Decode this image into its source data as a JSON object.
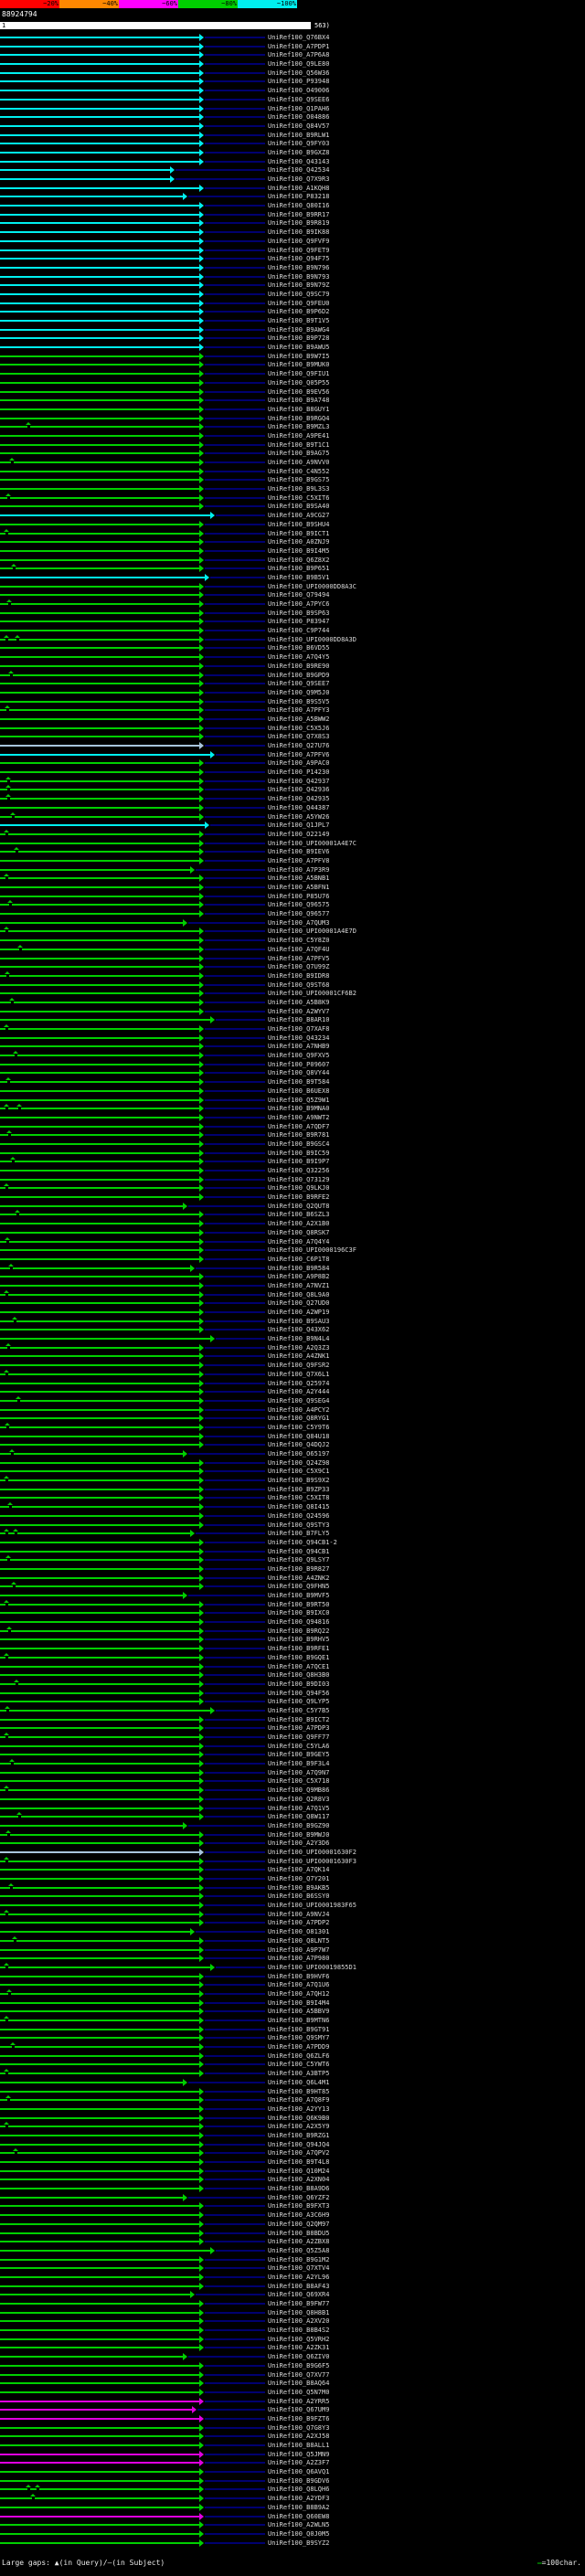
{
  "scale_bar": {
    "segments": [
      {
        "label": "~20%",
        "color": "#ff0000"
      },
      {
        "label": "~40%",
        "color": "#ff8800"
      },
      {
        "label": "~60%",
        "color": "#ff00ff"
      },
      {
        "label": "~80%",
        "color": "#00d000"
      },
      {
        "label": "~100%",
        "color": "#00efef"
      }
    ]
  },
  "query": {
    "id": "88924794",
    "start": "1",
    "end": "563)"
  },
  "footer": {
    "legend": "Large gaps: ▲(in Query)/—(in Subject)",
    "scale_dash": "—",
    "scale_text": "=100char."
  },
  "id_prefix": "UniRef100_",
  "colors": {
    "c": "#00efef",
    "g": "#00d000",
    "m": "#e000e0",
    "b": "#a8c4dc"
  },
  "rows": [
    [
      "Q76BX4",
      "c",
      218
    ],
    [
      "A7PDP1",
      "c",
      218
    ],
    [
      "A7P6A8",
      "c",
      218
    ],
    [
      "Q9LE80",
      "c",
      218
    ],
    [
      "Q56W36",
      "c",
      218
    ],
    [
      "P93948",
      "c",
      218
    ],
    [
      "O49006",
      "c",
      218
    ],
    [
      "Q9SEE6",
      "c",
      218
    ],
    [
      "Q1PAH6",
      "c",
      218
    ],
    [
      "O04886",
      "c",
      218
    ],
    [
      "Q84V57",
      "c",
      218
    ],
    [
      "B9RLW1",
      "c",
      218
    ],
    [
      "Q9FY03",
      "c",
      218
    ],
    [
      "B9GXZ8",
      "c",
      218
    ],
    [
      "Q43143",
      "c",
      218
    ],
    [
      "Q42534",
      "c",
      186
    ],
    [
      "Q7X9R3",
      "c",
      186
    ],
    [
      "A1KQH8",
      "c",
      218
    ],
    [
      "P83218",
      "c",
      200
    ],
    [
      "Q80I16",
      "c",
      218
    ],
    [
      "B9RR17",
      "c",
      218
    ],
    [
      "B9R819",
      "c",
      218
    ],
    [
      "B9IK88",
      "c",
      218
    ],
    [
      "Q9FVF9",
      "c",
      218
    ],
    [
      "Q9FET9",
      "c",
      218
    ],
    [
      "Q94F75",
      "c",
      218
    ],
    [
      "B9N796",
      "c",
      218
    ],
    [
      "B9N793",
      "c",
      218
    ],
    [
      "B9N79Z",
      "c",
      218
    ],
    [
      "Q9SC79",
      "c",
      218
    ],
    [
      "Q9FEU0",
      "c",
      218
    ],
    [
      "B9P6D2",
      "c",
      218
    ],
    [
      "B9T1V5",
      "c",
      218
    ],
    [
      "B9AWG4",
      "c",
      218
    ],
    [
      "B9P728",
      "c",
      218
    ],
    [
      "B9AWU5",
      "c",
      218
    ],
    [
      "B9W7I5",
      "g",
      218
    ],
    [
      "B9MUK0",
      "g",
      218
    ],
    [
      "Q9FIU1",
      "g",
      218
    ],
    [
      "Q05P55",
      "g",
      218
    ],
    [
      "B9EV56",
      "g",
      218
    ],
    [
      "B9A748",
      "g",
      218
    ],
    [
      "B8GUY1",
      "g",
      218
    ],
    [
      "B9RGQ4",
      "g",
      218
    ],
    [
      "B9MZL3",
      "g",
      218,
      [
        30
      ]
    ],
    [
      "A9PE41",
      "g",
      218
    ],
    [
      "B9T1C1",
      "g",
      218
    ],
    [
      "B9AG75",
      "g",
      218
    ],
    [
      "A9NVV0",
      "g",
      218,
      [
        12
      ]
    ],
    [
      "C4N552",
      "g",
      218
    ],
    [
      "B9GS75",
      "g",
      218
    ],
    [
      "B9L3S3",
      "g",
      218
    ],
    [
      "C5XIT6",
      "g",
      218,
      [
        8
      ]
    ],
    [
      "B9SA40",
      "g",
      218
    ],
    [
      "A9CG27",
      "c",
      230
    ],
    [
      "B9SHU4",
      "g",
      218
    ],
    [
      "B9ICT1",
      "g",
      218,
      [
        6
      ]
    ],
    [
      "A0ZNJ9",
      "g",
      218
    ],
    [
      "B9I4M5",
      "g",
      218
    ],
    [
      "Q6Z8X2",
      "g",
      218
    ],
    [
      "B9P651",
      "g",
      218,
      [
        14
      ]
    ],
    [
      "B9B5V1",
      "c",
      224
    ],
    [
      "UPI0000DD8A3C",
      "g",
      218
    ],
    [
      "Q79494",
      "g",
      218
    ],
    [
      "A7PYC6",
      "g",
      218,
      [
        9
      ]
    ],
    [
      "B9SP63",
      "g",
      218
    ],
    [
      "P83947",
      "g",
      218
    ],
    [
      "C9P744",
      "g",
      218
    ],
    [
      "UPI0000DD8A3D",
      "g",
      218,
      [
        6,
        18
      ]
    ],
    [
      "B6VD55",
      "g",
      218
    ],
    [
      "A7Q4Y5",
      "g",
      218
    ],
    [
      "B9RE90",
      "g",
      218
    ],
    [
      "B9GPD9",
      "g",
      218,
      [
        11
      ]
    ],
    [
      "Q9SEE7",
      "g",
      218
    ],
    [
      "Q9M5J0",
      "g",
      218
    ],
    [
      "B9S5V5",
      "g",
      218
    ],
    [
      "A7PFY3",
      "g",
      218,
      [
        7
      ]
    ],
    [
      "A5BWW2",
      "g",
      218
    ],
    [
      "C5X5J6",
      "g",
      218
    ],
    [
      "Q7X8S3",
      "g",
      218
    ],
    [
      "Q27U76",
      "b",
      218
    ],
    [
      "A7PFV6",
      "c",
      230
    ],
    [
      "A9PAC0",
      "g",
      218
    ],
    [
      "P14230",
      "g",
      218
    ],
    [
      "Q42937",
      "g",
      218,
      [
        8
      ]
    ],
    [
      "Q42936",
      "g",
      218,
      [
        8
      ]
    ],
    [
      "Q42935",
      "g",
      218,
      [
        8
      ]
    ],
    [
      "Q44387",
      "g",
      218
    ],
    [
      "A5YW26",
      "g",
      218,
      [
        13
      ]
    ],
    [
      "Q1JPL7",
      "c",
      224
    ],
    [
      "O22149",
      "g",
      218,
      [
        6
      ]
    ],
    [
      "UPI00001A4E7C",
      "g",
      218
    ],
    [
      "B9IEV6",
      "g",
      218,
      [
        17
      ]
    ],
    [
      "A7PFV8",
      "g",
      218
    ],
    [
      "A7P3R9",
      "g",
      208
    ],
    [
      "A5BNB1",
      "g",
      218,
      [
        6
      ]
    ],
    [
      "A5BFN1",
      "g",
      218
    ],
    [
      "P85U76",
      "g",
      218
    ],
    [
      "Q96575",
      "g",
      218,
      [
        10
      ]
    ],
    [
      "Q96577",
      "g",
      218
    ],
    [
      "A7QUM3",
      "g",
      200
    ],
    [
      "UPI00001A4E7D",
      "g",
      218,
      [
        6
      ]
    ],
    [
      "C5Y8Z0",
      "g",
      218
    ],
    [
      "A7QF4U",
      "g",
      218,
      [
        21
      ]
    ],
    [
      "A7PFV5",
      "g",
      218
    ],
    [
      "Q7U99Z",
      "g",
      218
    ],
    [
      "B9IDR8",
      "g",
      218,
      [
        7
      ]
    ],
    [
      "Q9ST68",
      "g",
      218
    ],
    [
      "UPI00001CF6B2",
      "g",
      218
    ],
    [
      "A5B8K9",
      "g",
      218,
      [
        12
      ]
    ],
    [
      "A2WYV7",
      "g",
      218
    ],
    [
      "B8AR10",
      "g",
      230
    ],
    [
      "Q7XAF8",
      "g",
      218,
      [
        6
      ]
    ],
    [
      "Q43234",
      "g",
      218
    ],
    [
      "A7NHB9",
      "g",
      218
    ],
    [
      "Q9FXV5",
      "g",
      218,
      [
        16
      ]
    ],
    [
      "P09607",
      "g",
      218
    ],
    [
      "Q8VY44",
      "g",
      218
    ],
    [
      "B9T584",
      "g",
      218,
      [
        8
      ]
    ],
    [
      "B6UEX8",
      "g",
      218
    ],
    [
      "Q5Z9W1",
      "g",
      218
    ],
    [
      "B9MNA0",
      "g",
      218,
      [
        6,
        20
      ]
    ],
    [
      "A9NWT2",
      "g",
      218
    ],
    [
      "A7QDF7",
      "g",
      218
    ],
    [
      "B9R781",
      "g",
      218,
      [
        9
      ]
    ],
    [
      "B9GSC4",
      "g",
      218
    ],
    [
      "B9IC59",
      "g",
      218
    ],
    [
      "B9I9P7",
      "g",
      218,
      [
        13
      ]
    ],
    [
      "Q32256",
      "g",
      218
    ],
    [
      "Q73129",
      "g",
      218
    ],
    [
      "Q9LKJ0",
      "g",
      218,
      [
        6
      ]
    ],
    [
      "B9RFE2",
      "g",
      218
    ],
    [
      "Q2QUT8",
      "g",
      200
    ],
    [
      "B6SZL3",
      "g",
      218,
      [
        18
      ]
    ],
    [
      "A2X1B0",
      "g",
      218
    ],
    [
      "Q8RSK7",
      "g",
      218
    ],
    [
      "A7Q4Y4",
      "g",
      218,
      [
        7
      ]
    ],
    [
      "UPI0000196C3F",
      "g",
      218
    ],
    [
      "C6P1T8",
      "g",
      218
    ],
    [
      "B9R584",
      "g",
      208,
      [
        11
      ]
    ],
    [
      "A9P8B2",
      "g",
      218
    ],
    [
      "A7NVZ1",
      "g",
      218
    ],
    [
      "Q8L9A0",
      "g",
      218,
      [
        6
      ]
    ],
    [
      "Q27UD0",
      "g",
      218
    ],
    [
      "A2WP19",
      "g",
      218
    ],
    [
      "B9SAU3",
      "g",
      218,
      [
        15
      ]
    ],
    [
      "Q43X62",
      "g",
      218
    ],
    [
      "B9N4L4",
      "g",
      230
    ],
    [
      "A2Q3Z3",
      "g",
      218,
      [
        8
      ]
    ],
    [
      "A4ZNK1",
      "g",
      218
    ],
    [
      "Q9FSR2",
      "g",
      218
    ],
    [
      "Q7X6L1",
      "g",
      218,
      [
        6
      ]
    ],
    [
      "Q25974",
      "g",
      218
    ],
    [
      "A2Y444",
      "g",
      218
    ],
    [
      "Q9SEG4",
      "g",
      218,
      [
        19
      ]
    ],
    [
      "A4PCY2",
      "g",
      218
    ],
    [
      "Q8RYG1",
      "g",
      218
    ],
    [
      "C5Y9T6",
      "g",
      218,
      [
        7
      ]
    ],
    [
      "Q84U18",
      "g",
      218
    ],
    [
      "Q4DQJ2",
      "g",
      218
    ],
    [
      "O65197",
      "g",
      200,
      [
        12
      ]
    ],
    [
      "Q24Z98",
      "g",
      218
    ],
    [
      "C5X9C1",
      "g",
      218
    ],
    [
      "B9S9X2",
      "g",
      218,
      [
        6
      ]
    ],
    [
      "B9ZP33",
      "g",
      218
    ],
    [
      "C5XIT8",
      "g",
      218
    ],
    [
      "Q8I415",
      "g",
      218,
      [
        10
      ]
    ],
    [
      "Q24596",
      "g",
      218
    ],
    [
      "Q9STY3",
      "g",
      218
    ],
    [
      "B7FLY5",
      "g",
      208,
      [
        6,
        16
      ]
    ],
    [
      "Q94CB1-2",
      "g",
      218
    ],
    [
      "Q94CB1",
      "g",
      218
    ],
    [
      "Q9LSY7",
      "g",
      218,
      [
        8
      ]
    ],
    [
      "B9R827",
      "g",
      218
    ],
    [
      "A4ZNK2",
      "g",
      218
    ],
    [
      "Q9FHN5",
      "g",
      218,
      [
        14
      ]
    ],
    [
      "B9MVF5",
      "g",
      200
    ],
    [
      "B9RT50",
      "g",
      218,
      [
        6
      ]
    ],
    [
      "B9IXC0",
      "g",
      218
    ],
    [
      "Q94816",
      "g",
      218
    ],
    [
      "B9RQ22",
      "g",
      218,
      [
        9
      ]
    ],
    [
      "B9RHV5",
      "g",
      218
    ],
    [
      "B9RFE1",
      "g",
      218
    ],
    [
      "B9GQE1",
      "g",
      218,
      [
        6
      ]
    ],
    [
      "A7QCE1",
      "g",
      218
    ],
    [
      "Q8H3B0",
      "g",
      218
    ],
    [
      "B9DI03",
      "g",
      218,
      [
        17
      ]
    ],
    [
      "Q94F56",
      "g",
      218
    ],
    [
      "Q9LYP5",
      "g",
      218
    ],
    [
      "C5Y7B5",
      "g",
      230,
      [
        7
      ]
    ],
    [
      "B9ICT2",
      "g",
      218
    ],
    [
      "A7PDP3",
      "g",
      218
    ],
    [
      "Q9FF77",
      "g",
      218,
      [
        6
      ]
    ],
    [
      "C5YLA6",
      "g",
      218
    ],
    [
      "B9GEY5",
      "g",
      218
    ],
    [
      "B9F3L4",
      "g",
      218,
      [
        12
      ]
    ],
    [
      "A7Q9N7",
      "g",
      218
    ],
    [
      "C5X718",
      "g",
      218
    ],
    [
      "Q9MB86",
      "g",
      218,
      [
        6
      ]
    ],
    [
      "Q2R8V3",
      "g",
      218
    ],
    [
      "A7Q1V5",
      "g",
      218
    ],
    [
      "Q8W117",
      "g",
      218,
      [
        20
      ]
    ],
    [
      "B9GZ90",
      "g",
      200
    ],
    [
      "B9MWJ0",
      "g",
      218,
      [
        8
      ]
    ],
    [
      "A2Y3D6",
      "g",
      218
    ],
    [
      "UPI00001630F2",
      "b",
      218
    ],
    [
      "UPI00001630F3",
      "g",
      218,
      [
        6
      ]
    ],
    [
      "A7QK14",
      "g",
      218
    ],
    [
      "Q7Y201",
      "g",
      218
    ],
    [
      "B9AKB5",
      "g",
      218,
      [
        11
      ]
    ],
    [
      "B6SSY0",
      "g",
      218
    ],
    [
      "UPI0001983F65",
      "g",
      218
    ],
    [
      "A9NVJ4",
      "g",
      218,
      [
        6
      ]
    ],
    [
      "A7PDP2",
      "g",
      218
    ],
    [
      "O81301",
      "g",
      208
    ],
    [
      "Q8LNT5",
      "g",
      218,
      [
        15
      ]
    ],
    [
      "A9P7W7",
      "g",
      218
    ],
    [
      "A7P980",
      "g",
      218
    ],
    [
      "UPI00019855D1",
      "g",
      230,
      [
        6
      ]
    ],
    [
      "B9HVF6",
      "g",
      218
    ],
    [
      "A7Q1U6",
      "g",
      218
    ],
    [
      "A7QH12",
      "g",
      218,
      [
        9
      ]
    ],
    [
      "B9I4M4",
      "g",
      218
    ],
    [
      "A5BBV9",
      "g",
      218
    ],
    [
      "B9MTN6",
      "g",
      218,
      [
        6
      ]
    ],
    [
      "B9GT91",
      "g",
      218
    ],
    [
      "Q9SMY7",
      "g",
      218
    ],
    [
      "A7PDD9",
      "g",
      218,
      [
        13
      ]
    ],
    [
      "Q6ZLF6",
      "g",
      218
    ],
    [
      "C5YWT6",
      "g",
      218
    ],
    [
      "A3BTP5",
      "g",
      218,
      [
        6
      ]
    ],
    [
      "Q6L4M1",
      "g",
      200
    ],
    [
      "B9HT85",
      "g",
      218
    ],
    [
      "A7Q8F9",
      "g",
      218,
      [
        8
      ]
    ],
    [
      "A2YY13",
      "g",
      218
    ],
    [
      "Q6K9B0",
      "g",
      218
    ],
    [
      "A2X5Y9",
      "g",
      218,
      [
        6
      ]
    ],
    [
      "B9RZG1",
      "g",
      218
    ],
    [
      "Q94JQ4",
      "g",
      218
    ],
    [
      "A7QPV2",
      "g",
      218,
      [
        16
      ]
    ],
    [
      "B9T4L8",
      "g",
      218
    ],
    [
      "Q10M24",
      "g",
      218
    ],
    [
      "A2XN04",
      "g",
      218
    ],
    [
      "B8A9D6",
      "g",
      218
    ],
    [
      "Q6YZF2",
      "g",
      200
    ],
    [
      "B9FXT3",
      "g",
      218
    ],
    [
      "A3C6H9",
      "g",
      218
    ],
    [
      "Q2QM97",
      "g",
      218
    ],
    [
      "B8BDU5",
      "g",
      218
    ],
    [
      "A2ZBX8",
      "g",
      218
    ],
    [
      "Q5Z5A8",
      "g",
      230
    ],
    [
      "B9G1M2",
      "g",
      218
    ],
    [
      "Q7XTV4",
      "g",
      218
    ],
    [
      "A2YL96",
      "g",
      218
    ],
    [
      "B8AF43",
      "g",
      218
    ],
    [
      "Q69XR4",
      "g",
      208
    ],
    [
      "B9FW77",
      "g",
      218
    ],
    [
      "Q8H8B1",
      "g",
      218
    ],
    [
      "A2XV20",
      "g",
      218
    ],
    [
      "B8B4S2",
      "g",
      218
    ],
    [
      "Q5VRH2",
      "g",
      218
    ],
    [
      "A2ZK31",
      "g",
      218
    ],
    [
      "Q6ZIV0",
      "g",
      200
    ],
    [
      "B9G6F5",
      "g",
      218
    ],
    [
      "Q7XV77",
      "g",
      218
    ],
    [
      "B8AQ64",
      "g",
      218
    ],
    [
      "Q5N7M0",
      "g",
      218
    ],
    [
      "A2YRR5",
      "m",
      218
    ],
    [
      "Q67UM9",
      "m",
      210
    ],
    [
      "B9FZT6",
      "m",
      218
    ],
    [
      "Q7G8Y3",
      "g",
      218
    ],
    [
      "A2XJ58",
      "g",
      218
    ],
    [
      "B8ALL1",
      "g",
      218
    ],
    [
      "Q5JMN9",
      "m",
      218
    ],
    [
      "A2Z3F7",
      "m",
      218
    ],
    [
      "Q6AVQ1",
      "g",
      218
    ],
    [
      "B9GDV6",
      "g",
      218
    ],
    [
      "Q8LQH6",
      "g",
      218,
      [
        30,
        40
      ]
    ],
    [
      "A2YDF3",
      "g",
      218,
      [
        35
      ]
    ],
    [
      "B8B9A2",
      "g",
      218
    ],
    [
      "Q60EW8",
      "m",
      218
    ],
    [
      "A2WLN5",
      "g",
      218
    ],
    [
      "Q0J0M5",
      "g",
      218
    ],
    [
      "B9SYZ2",
      "g",
      218
    ]
  ]
}
